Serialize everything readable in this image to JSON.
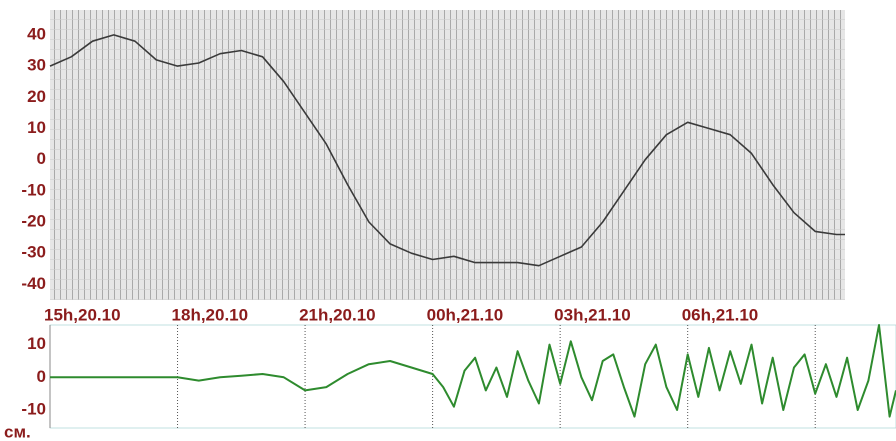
{
  "chart_data": [
    {
      "type": "line",
      "x": [
        0,
        0.5,
        1,
        1.5,
        2,
        2.5,
        3,
        3.5,
        4,
        4.5,
        5,
        5.5,
        6,
        6.5,
        7,
        7.5,
        8,
        8.5,
        9,
        9.5,
        10,
        10.5,
        11,
        11.5,
        12,
        12.5,
        13,
        13.5,
        14,
        14.5,
        15,
        15.5,
        16,
        16.5,
        17,
        17.5,
        18,
        18.5,
        18.7
      ],
      "series": [
        {
          "color": "#3a3a3a",
          "values": [
            30,
            33,
            38,
            40,
            38,
            32,
            30,
            31,
            34,
            35,
            33,
            25,
            15,
            5,
            -8,
            -20,
            -27,
            -30,
            -32,
            -31,
            -33,
            -33,
            -33,
            -34,
            -31,
            -28,
            -20,
            -10,
            0,
            8,
            12,
            10,
            8,
            2,
            -8,
            -17,
            -23,
            -24,
            -24
          ]
        }
      ],
      "xlim": [
        0,
        18.7
      ],
      "xticks": [
        {
          "value": 0,
          "label": "15h,20.10"
        },
        {
          "value": 3,
          "label": "18h,20.10"
        },
        {
          "value": 6,
          "label": "21h,20.10"
        },
        {
          "value": 9,
          "label": "00h,21.10"
        },
        {
          "value": 12,
          "label": "03h,21.10"
        },
        {
          "value": 15,
          "label": "06h,21.10"
        }
      ],
      "ylim": [
        -45,
        48
      ],
      "yticks": [
        40,
        30,
        20,
        10,
        0,
        -10,
        -20,
        -30,
        -40
      ]
    },
    {
      "type": "line",
      "y_label": "см.",
      "x": [
        0,
        3,
        3.5,
        4,
        4.5,
        5,
        5.5,
        6,
        6.5,
        7,
        7.5,
        8,
        8.5,
        9,
        9.25,
        9.5,
        9.75,
        10,
        10.25,
        10.5,
        10.75,
        11,
        11.25,
        11.5,
        11.75,
        12,
        12.25,
        12.5,
        12.75,
        13,
        13.25,
        13.5,
        13.75,
        14,
        14.25,
        14.5,
        14.75,
        15,
        15.25,
        15.5,
        15.75,
        16,
        16.25,
        16.5,
        16.75,
        17,
        17.25,
        17.5,
        17.75,
        18,
        18.25,
        18.5,
        18.75,
        19,
        19.25,
        19.5,
        19.75,
        19.9
      ],
      "series": [
        {
          "color": "#2e8b2e",
          "values": [
            0,
            0,
            -1,
            0,
            0.5,
            1,
            0,
            -4,
            -3,
            1,
            4,
            5,
            3,
            1,
            -3,
            -9,
            2,
            6,
            -4,
            3,
            -6,
            8,
            -1,
            -8,
            10,
            -2,
            11,
            0,
            -7,
            5,
            7,
            -3,
            -12,
            4,
            10,
            -3,
            -10,
            7,
            -6,
            9,
            -4,
            8,
            -2,
            10,
            -8,
            6,
            -10,
            3,
            7,
            -5,
            4,
            -6,
            6,
            -10,
            -1,
            16,
            -12,
            -4
          ]
        }
      ],
      "xlim": [
        0,
        19.9
      ],
      "xticks": [
        3,
        6,
        9,
        12,
        15,
        18
      ],
      "ylim": [
        -15.5,
        16
      ],
      "yticks": [
        10,
        0,
        -10
      ]
    }
  ]
}
